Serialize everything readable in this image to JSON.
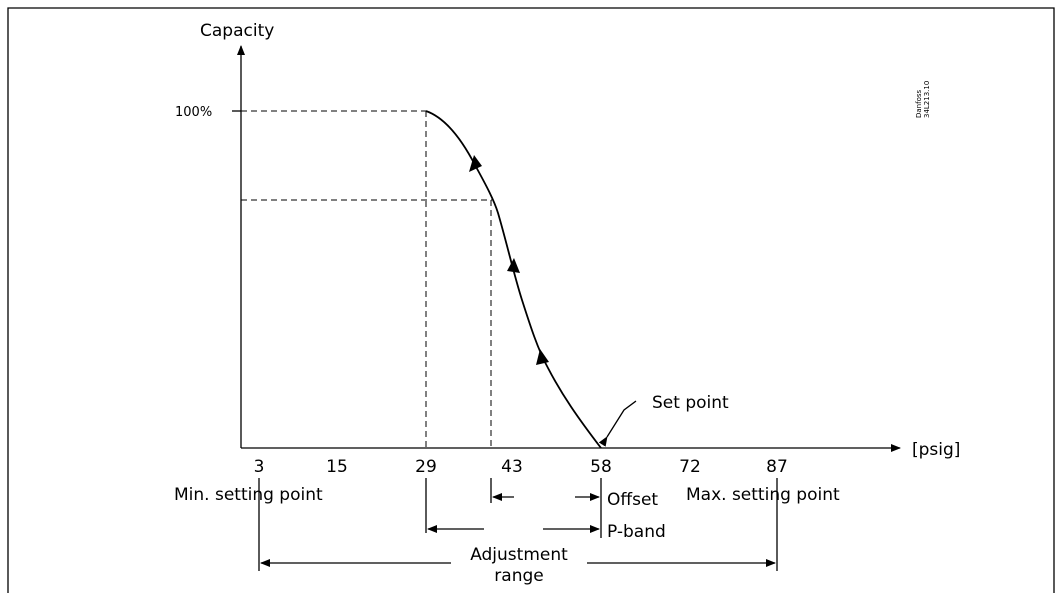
{
  "y_axis_label": "Capacity",
  "x_axis_unit": "[psig]",
  "y_tick_100": "100%",
  "x_ticks": [
    "3",
    "15",
    "29",
    "43",
    "58",
    "72",
    "87"
  ],
  "brand_code_line1": "Danfoss",
  "brand_code_line2": "34L213.10",
  "annotations": {
    "set_point": "Set point",
    "min_setting": "Min. setting point",
    "max_setting": "Max. setting point",
    "offset": "Offset",
    "p_band": "P-band",
    "adjustment_line1": "Adjustment",
    "adjustment_line2": "range"
  },
  "colors": {
    "line": "#000000",
    "background": "#ffffff"
  }
}
